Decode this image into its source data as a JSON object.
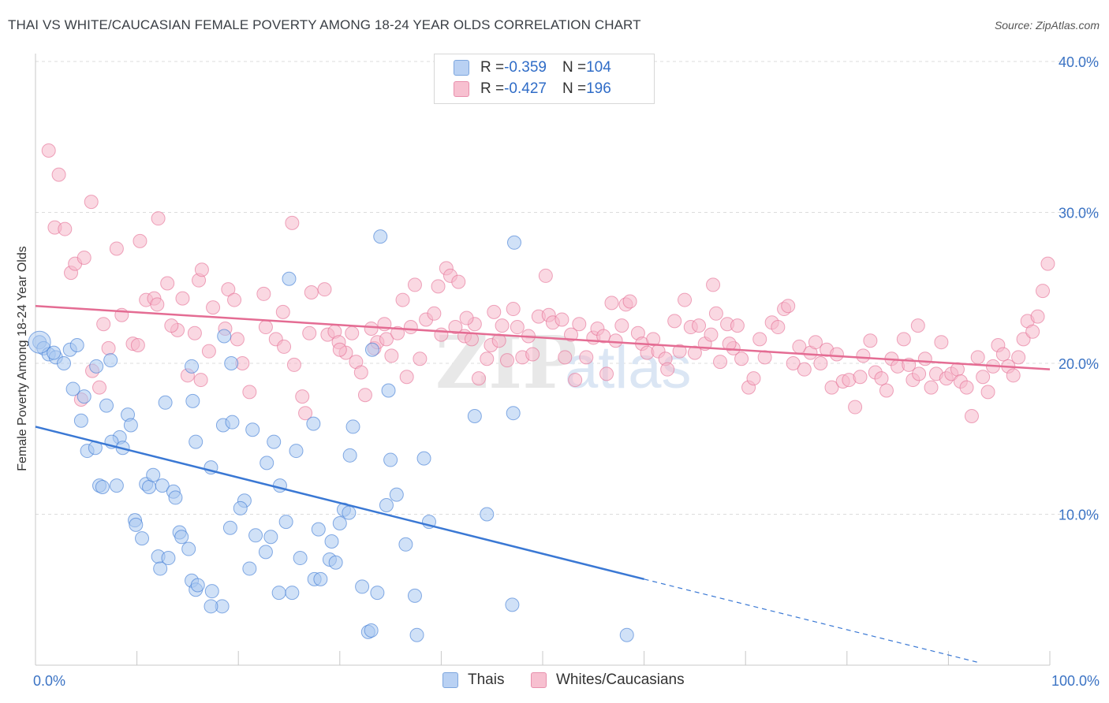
{
  "title": "THAI VS WHITE/CAUCASIAN FEMALE POVERTY AMONG 18-24 YEAR OLDS CORRELATION CHART",
  "source": "Source: ZipAtlas.com",
  "colors": {
    "thai": "#3a78d4",
    "thai_fill": "#a9c8f0",
    "white": "#e46c93",
    "white_fill": "#f5b8cb",
    "axis_text": "#3b73c4",
    "grid": "#dcdcdc"
  },
  "legend_top": [
    {
      "r_label": "R = ",
      "r_value": "-0.359",
      "n_label": "N = ",
      "n_value": "104"
    },
    {
      "r_label": "R = ",
      "r_value": "-0.427",
      "n_label": "N = ",
      "n_value": "196"
    }
  ],
  "legend_bottom": [
    "Thais",
    "Whites/Caucasians"
  ],
  "chart_data": {
    "type": "scatter",
    "title": "THAI VS WHITE/CAUCASIAN FEMALE POVERTY AMONG 18-24 YEAR OLDS CORRELATION CHART",
    "xlabel": "",
    "ylabel": "Female Poverty Among 18-24 Year Olds",
    "xlim": [
      0,
      100
    ],
    "ylim": [
      0,
      40
    ],
    "x_tick_labels": [
      "0.0%",
      "100.0%"
    ],
    "y_tick_labels": [
      "10.0%",
      "20.0%",
      "30.0%",
      "40.0%"
    ],
    "y_ticks": [
      10,
      20,
      30,
      40
    ],
    "grid": true,
    "legend_position": "top-center",
    "series": [
      {
        "name": "Thais",
        "r": -0.359,
        "n": 104,
        "trend": {
          "x0": 0,
          "y0": 15.8,
          "x1": 60,
          "y1": 5.7,
          "dashed_to_x": 100,
          "dashed_y1": -1.0
        },
        "points": [
          [
            0.4,
            21.4
          ],
          [
            0.8,
            21.0
          ],
          [
            1.3,
            20.6
          ],
          [
            2.0,
            20.4
          ],
          [
            2.8,
            20.0
          ],
          [
            3.4,
            20.9
          ],
          [
            4.1,
            21.2
          ],
          [
            1.8,
            20.7
          ],
          [
            3.7,
            18.3
          ],
          [
            4.8,
            17.8
          ],
          [
            4.5,
            16.2
          ],
          [
            7.0,
            17.2
          ],
          [
            6.0,
            19.8
          ],
          [
            7.4,
            20.2
          ],
          [
            9.1,
            16.6
          ],
          [
            9.4,
            15.9
          ],
          [
            8.3,
            15.1
          ],
          [
            7.5,
            14.8
          ],
          [
            8.6,
            14.4
          ],
          [
            5.1,
            14.2
          ],
          [
            5.9,
            14.4
          ],
          [
            6.3,
            11.9
          ],
          [
            6.6,
            11.8
          ],
          [
            8.0,
            11.9
          ],
          [
            10.9,
            12.0
          ],
          [
            11.2,
            11.8
          ],
          [
            11.6,
            12.6
          ],
          [
            12.5,
            11.9
          ],
          [
            13.6,
            11.5
          ],
          [
            13.8,
            11.1
          ],
          [
            12.8,
            17.4
          ],
          [
            15.5,
            17.5
          ],
          [
            15.8,
            14.8
          ],
          [
            17.3,
            13.1
          ],
          [
            19.2,
            9.1
          ],
          [
            18.5,
            15.9
          ],
          [
            19.4,
            16.1
          ],
          [
            20.6,
            10.9
          ],
          [
            20.2,
            10.4
          ],
          [
            21.4,
            15.6
          ],
          [
            21.7,
            8.6
          ],
          [
            22.7,
            7.5
          ],
          [
            23.2,
            8.5
          ],
          [
            22.8,
            13.4
          ],
          [
            23.5,
            14.8
          ],
          [
            24.1,
            11.9
          ],
          [
            24.7,
            9.5
          ],
          [
            25.7,
            14.2
          ],
          [
            26.1,
            7.1
          ],
          [
            27.4,
            16.0
          ],
          [
            27.5,
            5.7
          ],
          [
            28.1,
            5.7
          ],
          [
            27.9,
            9.0
          ],
          [
            29.0,
            7.0
          ],
          [
            29.2,
            8.2
          ],
          [
            29.6,
            6.8
          ],
          [
            30.0,
            9.4
          ],
          [
            30.4,
            10.3
          ],
          [
            30.9,
            10.1
          ],
          [
            31.0,
            13.9
          ],
          [
            31.3,
            15.8
          ],
          [
            32.2,
            5.2
          ],
          [
            32.8,
            2.2
          ],
          [
            33.1,
            2.3
          ],
          [
            33.7,
            4.8
          ],
          [
            34.6,
            10.6
          ],
          [
            34.8,
            18.2
          ],
          [
            33.2,
            20.9
          ],
          [
            35.0,
            13.6
          ],
          [
            35.6,
            11.3
          ],
          [
            36.5,
            8.0
          ],
          [
            37.4,
            4.6
          ],
          [
            37.6,
            2.0
          ],
          [
            38.3,
            13.7
          ],
          [
            38.8,
            9.5
          ],
          [
            43.3,
            16.5
          ],
          [
            44.5,
            10.0
          ],
          [
            47.0,
            4.0
          ],
          [
            47.1,
            16.7
          ],
          [
            47.2,
            28.0
          ],
          [
            58.3,
            2.0
          ],
          [
            34.0,
            28.4
          ],
          [
            25.0,
            25.6
          ],
          [
            18.6,
            21.8
          ],
          [
            15.4,
            19.8
          ],
          [
            19.3,
            20.0
          ],
          [
            9.8,
            9.6
          ],
          [
            9.9,
            9.3
          ],
          [
            10.5,
            8.4
          ],
          [
            12.1,
            7.2
          ],
          [
            12.3,
            6.4
          ],
          [
            13.1,
            7.1
          ],
          [
            14.2,
            8.8
          ],
          [
            14.4,
            8.5
          ],
          [
            15.1,
            7.7
          ],
          [
            15.4,
            5.6
          ],
          [
            15.8,
            5.0
          ],
          [
            16.0,
            5.3
          ],
          [
            17.4,
            4.9
          ],
          [
            18.4,
            3.9
          ],
          [
            17.3,
            3.9
          ],
          [
            25.3,
            4.8
          ],
          [
            24.0,
            4.8
          ],
          [
            21.1,
            6.4
          ]
        ]
      },
      {
        "name": "Whites/Caucasians",
        "r": -0.427,
        "n": 196,
        "trend": {
          "x0": 0,
          "y0": 23.8,
          "x1": 100,
          "y1": 19.6
        },
        "points": [
          [
            1.3,
            34.1
          ],
          [
            2.3,
            32.5
          ],
          [
            5.5,
            30.7
          ],
          [
            8.0,
            27.6
          ],
          [
            12.1,
            29.6
          ],
          [
            1.9,
            29.0
          ],
          [
            2.9,
            28.9
          ],
          [
            10.3,
            28.1
          ],
          [
            3.5,
            26.0
          ],
          [
            3.9,
            26.6
          ],
          [
            4.8,
            27.0
          ],
          [
            13.0,
            25.3
          ],
          [
            16.1,
            25.5
          ],
          [
            16.4,
            26.2
          ],
          [
            25.3,
            29.3
          ],
          [
            10.9,
            24.2
          ],
          [
            11.7,
            24.3
          ],
          [
            12.0,
            23.9
          ],
          [
            14.0,
            22.2
          ],
          [
            14.5,
            24.3
          ],
          [
            15.7,
            22.0
          ],
          [
            17.5,
            23.7
          ],
          [
            19.0,
            24.9
          ],
          [
            19.6,
            24.2
          ],
          [
            6.7,
            22.6
          ],
          [
            8.5,
            23.2
          ],
          [
            9.6,
            21.3
          ],
          [
            10.1,
            21.2
          ],
          [
            7.2,
            21.0
          ],
          [
            5.6,
            19.5
          ],
          [
            6.3,
            18.4
          ],
          [
            4.5,
            17.6
          ],
          [
            13.4,
            22.5
          ],
          [
            15.0,
            19.2
          ],
          [
            16.3,
            18.9
          ],
          [
            17.1,
            20.8
          ],
          [
            18.7,
            22.3
          ],
          [
            19.9,
            21.6
          ],
          [
            20.4,
            20.0
          ],
          [
            21.1,
            18.1
          ],
          [
            22.7,
            22.4
          ],
          [
            23.7,
            21.6
          ],
          [
            24.4,
            23.4
          ],
          [
            24.5,
            21.1
          ],
          [
            25.5,
            19.9
          ],
          [
            26.3,
            17.8
          ],
          [
            26.6,
            16.7
          ],
          [
            27.0,
            22.0
          ],
          [
            27.2,
            24.7
          ],
          [
            28.5,
            24.9
          ],
          [
            28.8,
            21.9
          ],
          [
            29.5,
            22.1
          ],
          [
            29.9,
            21.4
          ],
          [
            30.6,
            20.7
          ],
          [
            31.2,
            22.0
          ],
          [
            31.6,
            20.1
          ],
          [
            32.1,
            19.4
          ],
          [
            32.5,
            17.9
          ],
          [
            33.1,
            22.3
          ],
          [
            33.4,
            21.0
          ],
          [
            33.7,
            21.4
          ],
          [
            34.4,
            22.6
          ],
          [
            34.6,
            21.6
          ],
          [
            35.1,
            20.5
          ],
          [
            35.7,
            22.0
          ],
          [
            36.2,
            24.2
          ],
          [
            36.6,
            19.1
          ],
          [
            37.0,
            22.4
          ],
          [
            37.4,
            25.2
          ],
          [
            37.9,
            20.3
          ],
          [
            38.5,
            22.9
          ],
          [
            39.3,
            23.3
          ],
          [
            39.7,
            25.1
          ],
          [
            40.0,
            21.9
          ],
          [
            40.5,
            26.3
          ],
          [
            40.9,
            25.8
          ],
          [
            41.4,
            22.4
          ],
          [
            41.7,
            25.4
          ],
          [
            42.3,
            21.8
          ],
          [
            43.0,
            21.6
          ],
          [
            43.3,
            22.6
          ],
          [
            43.7,
            19.0
          ],
          [
            44.5,
            20.3
          ],
          [
            44.9,
            21.2
          ],
          [
            45.2,
            23.4
          ],
          [
            45.7,
            21.5
          ],
          [
            46.0,
            22.5
          ],
          [
            46.5,
            20.2
          ],
          [
            47.1,
            23.6
          ],
          [
            47.5,
            22.4
          ],
          [
            48.0,
            20.4
          ],
          [
            48.6,
            21.8
          ],
          [
            49.0,
            20.6
          ],
          [
            49.6,
            23.1
          ],
          [
            50.3,
            25.8
          ],
          [
            50.6,
            23.2
          ],
          [
            51.0,
            22.7
          ],
          [
            51.9,
            22.9
          ],
          [
            52.2,
            20.4
          ],
          [
            52.8,
            21.9
          ],
          [
            53.2,
            18.9
          ],
          [
            53.6,
            22.6
          ],
          [
            54.3,
            20.4
          ],
          [
            55.0,
            21.7
          ],
          [
            55.4,
            22.3
          ],
          [
            56.0,
            21.8
          ],
          [
            56.3,
            19.3
          ],
          [
            56.8,
            24.0
          ],
          [
            57.2,
            21.5
          ],
          [
            57.8,
            22.5
          ],
          [
            58.2,
            23.9
          ],
          [
            58.6,
            24.1
          ],
          [
            59.4,
            22.0
          ],
          [
            59.8,
            21.3
          ],
          [
            60.3,
            20.7
          ],
          [
            60.9,
            21.6
          ],
          [
            61.4,
            20.8
          ],
          [
            62.1,
            20.3
          ],
          [
            62.3,
            19.6
          ],
          [
            63.0,
            22.8
          ],
          [
            63.5,
            20.8
          ],
          [
            64.0,
            24.2
          ],
          [
            64.6,
            22.4
          ],
          [
            65.0,
            20.7
          ],
          [
            65.4,
            22.5
          ],
          [
            66.0,
            21.3
          ],
          [
            66.6,
            21.9
          ],
          [
            67.1,
            23.3
          ],
          [
            67.5,
            20.1
          ],
          [
            68.2,
            22.6
          ],
          [
            68.8,
            21.0
          ],
          [
            69.2,
            22.5
          ],
          [
            69.6,
            20.3
          ],
          [
            70.3,
            18.4
          ],
          [
            70.8,
            19.0
          ],
          [
            71.4,
            21.6
          ],
          [
            71.9,
            20.4
          ],
          [
            72.6,
            22.7
          ],
          [
            73.2,
            22.4
          ],
          [
            73.8,
            23.6
          ],
          [
            74.2,
            23.8
          ],
          [
            74.7,
            20.0
          ],
          [
            75.3,
            21.1
          ],
          [
            75.8,
            19.6
          ],
          [
            76.4,
            20.7
          ],
          [
            76.9,
            21.4
          ],
          [
            77.4,
            20.0
          ],
          [
            78.0,
            20.9
          ],
          [
            78.5,
            18.4
          ],
          [
            79.0,
            20.6
          ],
          [
            79.6,
            18.8
          ],
          [
            80.2,
            18.9
          ],
          [
            80.8,
            17.1
          ],
          [
            81.3,
            19.1
          ],
          [
            81.6,
            20.5
          ],
          [
            82.3,
            21.5
          ],
          [
            82.8,
            19.4
          ],
          [
            83.4,
            19.0
          ],
          [
            83.9,
            18.2
          ],
          [
            84.4,
            20.3
          ],
          [
            85.0,
            19.8
          ],
          [
            85.6,
            21.6
          ],
          [
            86.1,
            19.9
          ],
          [
            86.5,
            18.9
          ],
          [
            87.1,
            19.3
          ],
          [
            87.7,
            20.3
          ],
          [
            88.3,
            18.4
          ],
          [
            88.8,
            19.3
          ],
          [
            89.3,
            21.4
          ],
          [
            89.8,
            19.0
          ],
          [
            90.3,
            19.3
          ],
          [
            90.9,
            19.6
          ],
          [
            91.2,
            18.8
          ],
          [
            91.8,
            18.4
          ],
          [
            92.3,
            16.5
          ],
          [
            92.9,
            20.4
          ],
          [
            93.4,
            19.1
          ],
          [
            93.9,
            18.1
          ],
          [
            94.4,
            19.8
          ],
          [
            94.9,
            21.2
          ],
          [
            95.4,
            20.6
          ],
          [
            95.9,
            19.8
          ],
          [
            96.4,
            19.2
          ],
          [
            96.9,
            20.4
          ],
          [
            97.4,
            21.6
          ],
          [
            97.8,
            22.8
          ],
          [
            98.3,
            22.1
          ],
          [
            98.8,
            23.1
          ],
          [
            99.3,
            24.8
          ],
          [
            99.8,
            26.6
          ],
          [
            66.8,
            25.2
          ],
          [
            87.0,
            22.5
          ],
          [
            68.4,
            21.3
          ],
          [
            42.5,
            23.0
          ],
          [
            30.0,
            20.9
          ],
          [
            22.5,
            24.6
          ]
        ]
      }
    ]
  }
}
